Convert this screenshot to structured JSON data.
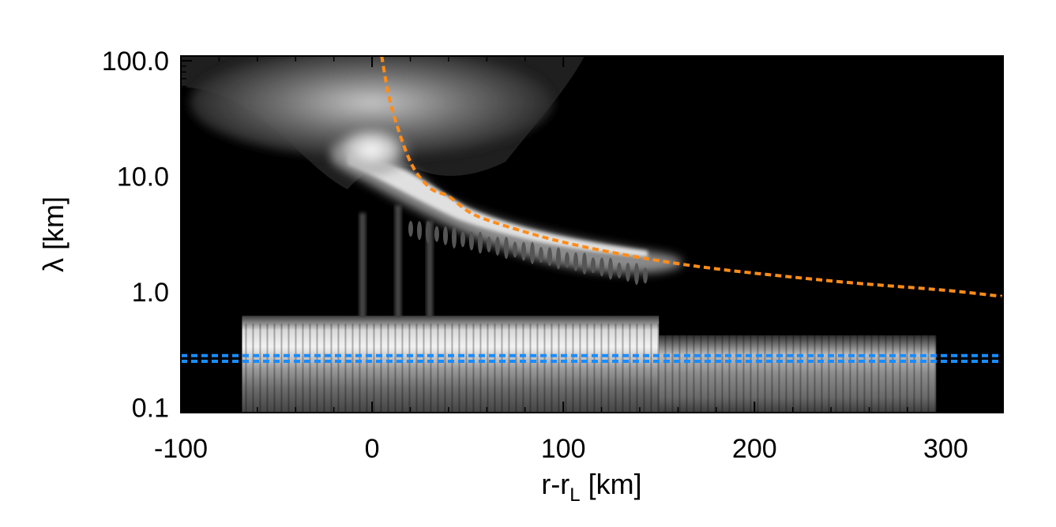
{
  "chart_data": {
    "type": "heatmap",
    "title": "",
    "xlabel": "r-r",
    "xlabel_subscript": "L",
    "xlabel_unit": " [km]",
    "ylabel": "λ [km]",
    "xlim": [
      -100,
      330
    ],
    "ylim": [
      0.09,
      110
    ],
    "y_scale": "log",
    "x_ticks": [
      -100,
      0,
      100,
      200,
      300
    ],
    "x_tick_labels": [
      "-100",
      "0",
      "100",
      "200",
      "300"
    ],
    "y_ticks": [
      0.1,
      1.0,
      10.0,
      100.0
    ],
    "y_tick_labels": [
      "0.1",
      "1.0",
      "10.0",
      "100.0"
    ],
    "colormap": "grayscale",
    "background_color": "#000000",
    "wavelet_data_extent": {
      "x": [
        -68,
        295
      ],
      "y": [
        0.09,
        0.62
      ]
    },
    "series": [
      {
        "style": "dashed",
        "color": "#ff8c1a",
        "x": [
          5,
          10,
          20,
          30,
          40,
          50,
          60,
          80,
          100,
          125,
          150,
          175,
          200,
          250,
          300,
          330
        ],
        "y": [
          110,
          40.7,
          13.4,
          8.0,
          6.7,
          5.0,
          4.2,
          3.3,
          2.69,
          2.2,
          1.86,
          1.62,
          1.45,
          1.2,
          1.03,
          0.91
        ]
      },
      {
        "style": "dashed",
        "color": "#1a8cff",
        "x": [
          -100,
          330
        ],
        "y": [
          0.28,
          0.28
        ]
      },
      {
        "style": "dashed",
        "color": "#1a8cff",
        "x": [
          -100,
          330
        ],
        "y": [
          0.25,
          0.25
        ]
      }
    ]
  }
}
